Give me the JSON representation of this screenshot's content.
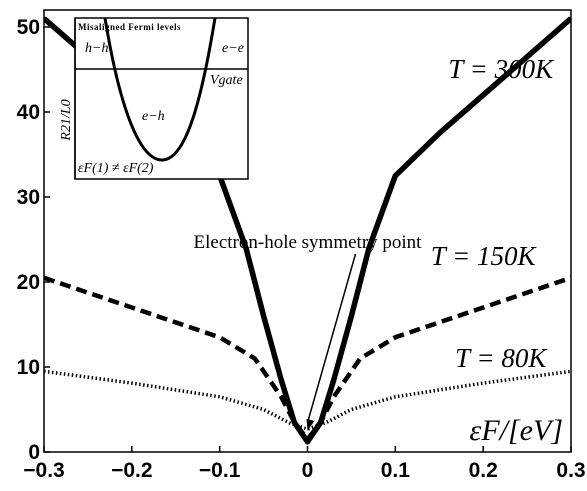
{
  "chart_data": {
    "type": "line",
    "xlabel": "εF/[eV]",
    "xlim": [
      -0.3,
      0.3
    ],
    "ylim": [
      0,
      52
    ],
    "x_ticks": [
      "−0.3",
      "−0.2",
      "−0.1",
      "0",
      "0.1",
      "0.2",
      "0.3"
    ],
    "y_ticks": [
      "0",
      "10",
      "20",
      "30",
      "40",
      "50"
    ],
    "grid": false,
    "series": [
      {
        "name": "T = 300K",
        "style": "solid",
        "label_pos": [
          0.22,
          44
        ],
        "x": [
          -0.3,
          -0.25,
          -0.2,
          -0.15,
          -0.1,
          -0.07,
          -0.05,
          -0.03,
          -0.015,
          0,
          0.015,
          0.03,
          0.05,
          0.07,
          0.1,
          0.15,
          0.2,
          0.25,
          0.3
        ],
        "y": [
          51,
          46.5,
          42,
          37.5,
          32.5,
          24,
          16,
          8.5,
          3.5,
          1.2,
          3.5,
          8.5,
          16,
          24,
          32.5,
          37.5,
          42,
          46.5,
          51
        ]
      },
      {
        "name": "T = 150K",
        "style": "dashed",
        "label_pos": [
          0.2,
          22
        ],
        "x": [
          -0.3,
          -0.2,
          -0.1,
          -0.06,
          -0.03,
          -0.015,
          0,
          0.015,
          0.03,
          0.06,
          0.1,
          0.2,
          0.3
        ],
        "y": [
          20.5,
          17,
          13.5,
          11,
          6.5,
          3.5,
          1.5,
          3.5,
          6.5,
          11,
          13.5,
          17,
          20.5
        ]
      },
      {
        "name": "T = 80K",
        "style": "dotted",
        "label_pos": [
          0.22,
          10
        ],
        "x": [
          -0.3,
          -0.2,
          -0.1,
          -0.05,
          -0.02,
          0,
          0.02,
          0.05,
          0.1,
          0.2,
          0.3
        ],
        "y": [
          9.5,
          8.1,
          6.5,
          5,
          3.4,
          2.7,
          3.4,
          5,
          6.5,
          8.1,
          9.5
        ]
      }
    ],
    "annotations": [
      {
        "text": "Electron-hole symmetry point",
        "arrow_to": [
          0,
          2.5
        ],
        "text_pos": [
          0,
          24
        ]
      }
    ],
    "inset": {
      "title": "Misaligned Fermi levels",
      "ylabel": "R21/L0",
      "x_axis_label": "Vgate",
      "regions": [
        "h−h",
        "e−e",
        "e−h"
      ],
      "condition": "εF(1) ≠ εF(2)"
    }
  }
}
